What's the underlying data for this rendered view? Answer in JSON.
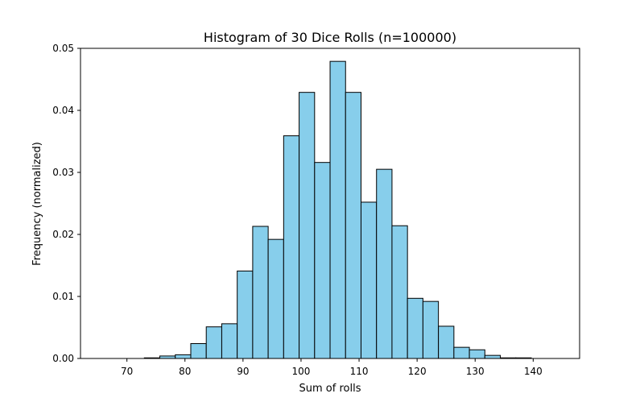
{
  "chart_data": {
    "type": "bar",
    "title": "Histogram of 30 Dice Rolls (n=100000)",
    "xlabel": "Sum of rolls",
    "ylabel": "Frequency (normalized)",
    "xlim": [
      62,
      148
    ],
    "ylim": [
      0,
      0.05
    ],
    "x_ticks": [
      70,
      80,
      90,
      100,
      110,
      120,
      130,
      140
    ],
    "y_ticks": [
      0.0,
      0.01,
      0.02,
      0.03,
      0.04,
      0.05
    ],
    "y_tick_labels": [
      "0.00",
      "0.01",
      "0.02",
      "0.03",
      "0.04",
      "0.05"
    ],
    "grid": false,
    "legend": "none",
    "bin_start": 65,
    "bin_width": 2.667,
    "values": [
      0.0,
      0.0,
      0.0,
      0.0001,
      0.0004,
      0.0006,
      0.0024,
      0.0051,
      0.0056,
      0.0141,
      0.0213,
      0.0192,
      0.0359,
      0.0429,
      0.0316,
      0.0479,
      0.0429,
      0.0252,
      0.0305,
      0.0214,
      0.0097,
      0.0092,
      0.0052,
      0.0018,
      0.0014,
      0.0005,
      0.0001,
      0.0001,
      0.0,
      0.0
    ],
    "bar_color": "#87CEEB",
    "edge_color": "#000000"
  }
}
